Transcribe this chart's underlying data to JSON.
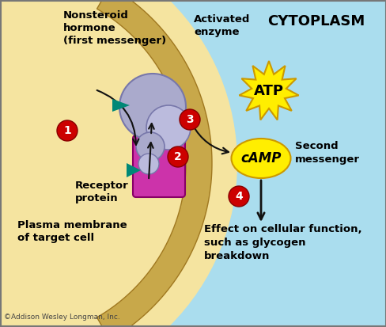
{
  "bg_left_color": "#aaddee",
  "bg_right_color": "#f5e4a0",
  "membrane_color": "#c8a84a",
  "cytoplasm_label": "CYTOPLASM",
  "nonsteroid_label": "Nonsteroid\nhormone\n(first messenger)",
  "activated_enzyme_label": "Activated\nenzyme",
  "atp_label": "ATP",
  "camp_label": "cAMP",
  "second_messenger_label": "Second\nmessenger",
  "receptor_label": "Receptor\nprotein",
  "plasma_membrane_label": "Plasma membrane\nof target cell",
  "effect_label": "Effect on cellular function,\nsuch as glycogen\nbreakdown",
  "copyright_label": "©Addison Wesley Longman, Inc.",
  "step_colors": [
    "#cc0000",
    "#cc0000",
    "#cc0000",
    "#cc0000"
  ],
  "steps": [
    "1",
    "2",
    "3",
    "4"
  ],
  "atp_color": "#ffee00",
  "camp_color": "#ffee00",
  "receptor_color": "#cc33aa",
  "enzyme_color": "#aaaacc",
  "arrow_color": "#111111",
  "teal_arrow_color": "#008877"
}
